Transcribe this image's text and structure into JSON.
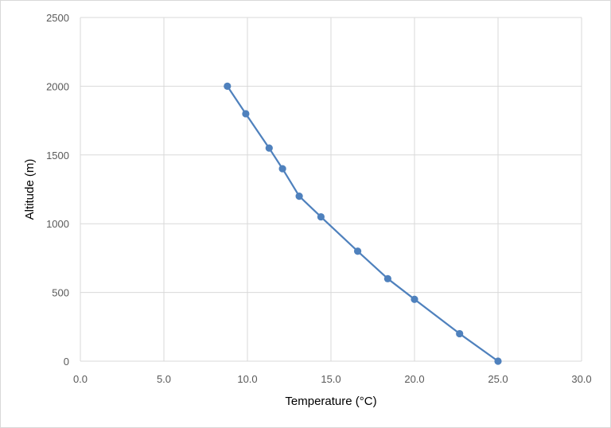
{
  "chart_data": {
    "type": "scatter",
    "title": "",
    "xlabel": "Temperature (°C)",
    "ylabel": "Altitude (m)",
    "xlim": [
      0,
      30
    ],
    "ylim": [
      0,
      2500
    ],
    "x_ticks": [
      "0.0",
      "5.0",
      "10.0",
      "15.0",
      "20.0",
      "25.0",
      "30.0"
    ],
    "y_ticks": [
      "0",
      "500",
      "1000",
      "1500",
      "2000",
      "2500"
    ],
    "grid": true,
    "legend": "none",
    "lines": true,
    "series": [
      {
        "color": "#4f81bd",
        "points": [
          {
            "x": 25.0,
            "y": 0
          },
          {
            "x": 22.7,
            "y": 200
          },
          {
            "x": 20.0,
            "y": 450
          },
          {
            "x": 18.4,
            "y": 600
          },
          {
            "x": 16.6,
            "y": 800
          },
          {
            "x": 14.4,
            "y": 1050
          },
          {
            "x": 13.1,
            "y": 1200
          },
          {
            "x": 12.1,
            "y": 1400
          },
          {
            "x": 11.3,
            "y": 1550
          },
          {
            "x": 9.9,
            "y": 1800
          },
          {
            "x": 8.8,
            "y": 2000
          }
        ]
      }
    ]
  }
}
